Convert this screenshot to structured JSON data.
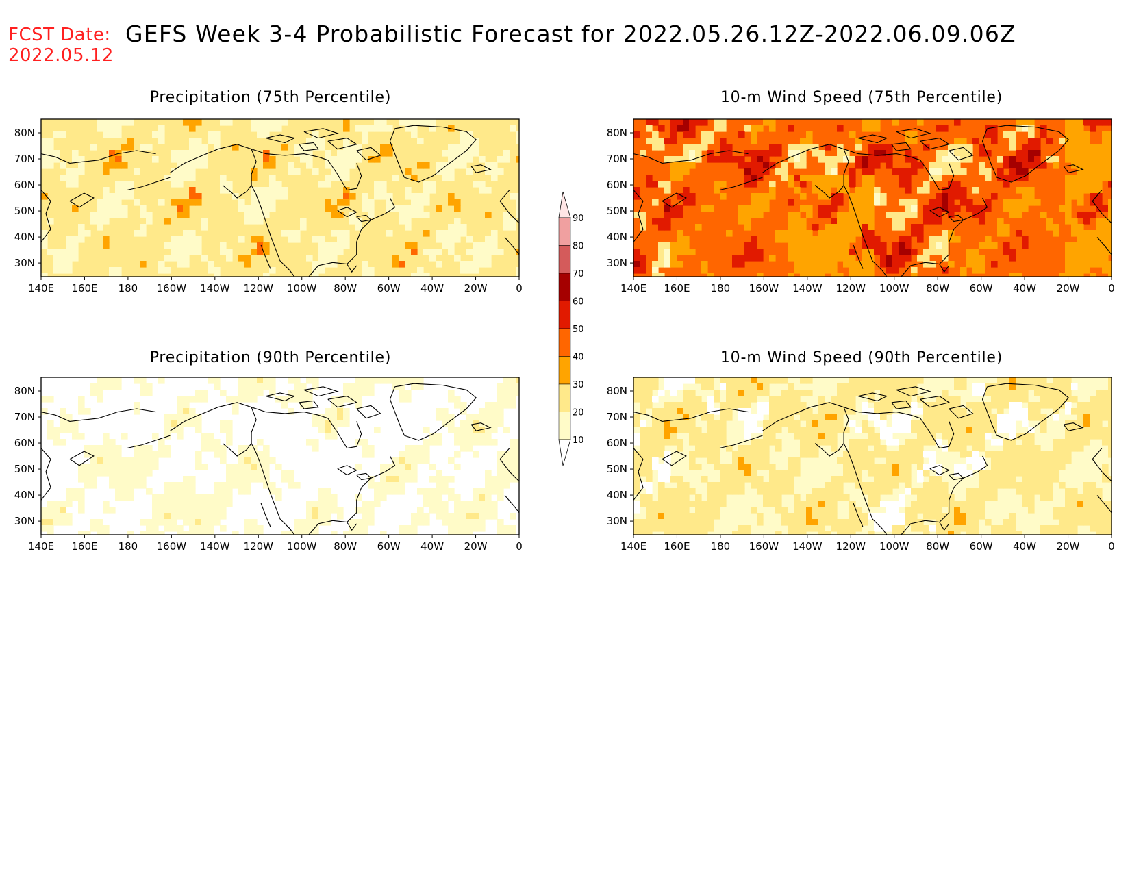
{
  "header": {
    "fcst_label": "FCST Date:",
    "fcst_date": "2022.05.12",
    "title": "GEFS Week 3-4 Probabilistic Forecast for 2022.05.26.12Z-2022.06.09.06Z"
  },
  "panels": [
    {
      "id": "precip-75",
      "title": "Precipitation (75th Percentile)",
      "field_level": "moderate"
    },
    {
      "id": "wind-75",
      "title": "10-m Wind Speed (75th Percentile)",
      "field_level": "high"
    },
    {
      "id": "precip-90",
      "title": "Precipitation (90th Percentile)",
      "field_level": "low"
    },
    {
      "id": "wind-90",
      "title": "10-m Wind Speed (90th Percentile)",
      "field_level": "moderate-low"
    }
  ],
  "map": {
    "lon_ticks": [
      "140E",
      "160E",
      "180",
      "160W",
      "140W",
      "120W",
      "100W",
      "80W",
      "60W",
      "40W",
      "20W",
      "0"
    ],
    "lat_ticks": [
      "80N",
      "70N",
      "60N",
      "50N",
      "40N",
      "30N"
    ]
  },
  "colorbar": {
    "levels": [
      "10",
      "20",
      "30",
      "40",
      "50",
      "60",
      "70",
      "80",
      "90"
    ],
    "colors": [
      "#fffbc8",
      "#ffe98a",
      "#ffa400",
      "#ff6600",
      "#e11a00",
      "#a50000",
      "#d45b5b",
      "#f0a0a0",
      "#ffe6e6"
    ]
  },
  "colors": {
    "fcst_label": "#ff2020",
    "coastline": "#000000",
    "white_below_10": "#ffffff"
  }
}
